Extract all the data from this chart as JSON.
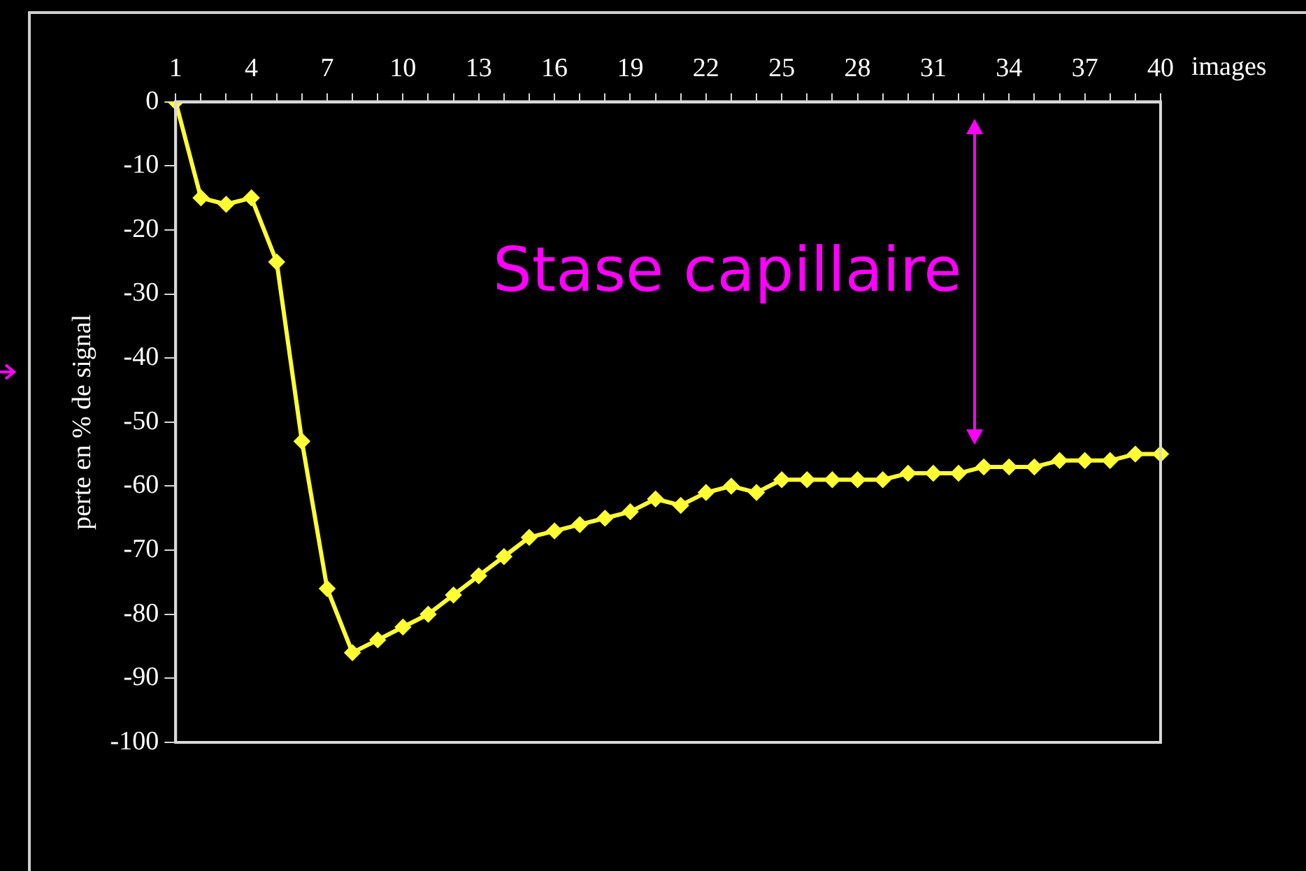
{
  "chart_data": {
    "type": "line",
    "xlabel": "images",
    "ylabel": "perte en % de signal",
    "categories": [
      "1",
      null,
      null,
      "4",
      null,
      null,
      "7",
      null,
      null,
      "10",
      null,
      null,
      "13",
      null,
      null,
      "16",
      null,
      null,
      "19",
      null,
      null,
      "22",
      null,
      null,
      "25",
      null,
      null,
      "28",
      null,
      null,
      "31",
      null,
      null,
      "34",
      null,
      null,
      "37",
      null,
      null,
      "40"
    ],
    "series": [
      {
        "color": "#ffff33",
        "values": [
          0,
          -15,
          -16,
          -15,
          -25,
          -53,
          -76,
          -86,
          -84,
          -82,
          -80,
          -77,
          -74,
          -71,
          -68,
          -67,
          -66,
          -65,
          -64,
          -62,
          -63,
          -61,
          -60,
          -61,
          -59,
          -59,
          -59,
          -59,
          -59,
          -58,
          -58,
          -58,
          -57,
          -57,
          -57,
          -56,
          -56,
          -56,
          -55,
          -55
        ]
      }
    ],
    "ylim": [
      -100,
      0
    ],
    "yticks": [
      0,
      -10,
      -20,
      -30,
      -40,
      -50,
      -60,
      -70,
      -80,
      -90,
      -100
    ],
    "annotations": [
      "Stase capillaire"
    ],
    "grid": false,
    "legend": false,
    "marker": "diamond",
    "line_style": "solid"
  }
}
